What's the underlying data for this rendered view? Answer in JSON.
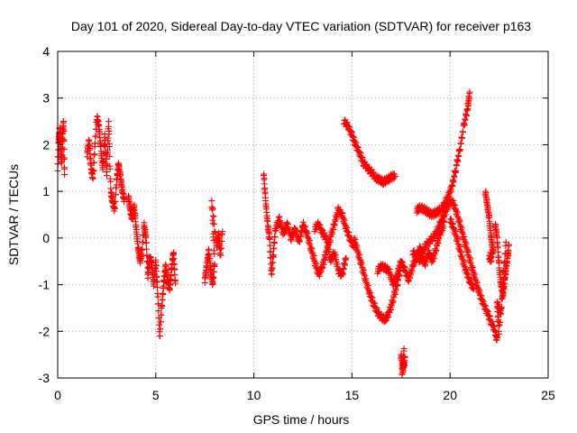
{
  "chart_data": {
    "type": "scatter",
    "title": "Day 101 of 2020, Sidereal Day-to-day VTEC variation (SDTVAR) for receiver p163",
    "xlabel": "GPS time / hours",
    "ylabel": "SDTVAR / TECUs",
    "xlim": [
      0,
      25
    ],
    "ylim": [
      -3,
      4
    ],
    "xticks": [
      "0",
      "5",
      "10",
      "15",
      "20",
      "25"
    ],
    "yticks": [
      "-3",
      "-2",
      "-1",
      "0",
      "1",
      "2",
      "3",
      "4"
    ],
    "grid": true,
    "marker": "plus",
    "color": "#ff0000",
    "series": [
      {
        "name": "SDTVAR",
        "segments": [
          [
            [
              0.0,
              1.5
            ],
            [
              0.05,
              2.1
            ],
            [
              0.1,
              2.3
            ],
            [
              0.15,
              1.9
            ],
            [
              0.2,
              1.6
            ],
            [
              0.25,
              2.2
            ],
            [
              0.3,
              2.5
            ],
            [
              0.35,
              1.3
            ]
          ],
          [
            [
              1.5,
              1.8
            ],
            [
              1.6,
              2.1
            ],
            [
              1.7,
              1.5
            ],
            [
              1.8,
              1.3
            ],
            [
              1.9,
              2.0
            ],
            [
              2.0,
              2.6
            ],
            [
              2.1,
              2.4
            ],
            [
              2.2,
              1.9
            ],
            [
              2.3,
              1.5
            ],
            [
              2.4,
              2.2
            ],
            [
              2.5,
              1.4
            ],
            [
              2.6,
              2.5
            ],
            [
              2.7,
              1.0
            ],
            [
              2.8,
              0.8
            ],
            [
              2.9,
              0.6
            ],
            [
              3.0,
              1.2
            ],
            [
              3.1,
              1.6
            ],
            [
              3.2,
              1.3
            ],
            [
              3.3,
              1.0
            ],
            [
              3.4,
              0.8
            ]
          ],
          [
            [
              3.6,
              0.9
            ],
            [
              3.7,
              0.6
            ],
            [
              3.8,
              0.4
            ],
            [
              3.9,
              0.7
            ],
            [
              4.0,
              0.2
            ],
            [
              4.1,
              -0.2
            ],
            [
              4.2,
              -0.5
            ],
            [
              4.3,
              -0.3
            ],
            [
              4.4,
              0.3
            ],
            [
              4.5,
              0.0
            ],
            [
              4.6,
              -0.8
            ],
            [
              4.7,
              -0.4
            ],
            [
              4.8,
              -0.6
            ],
            [
              4.9,
              -1.0
            ],
            [
              5.0,
              -0.5
            ],
            [
              5.1,
              -1.2
            ],
            [
              5.2,
              -2.1
            ],
            [
              5.3,
              -1.5
            ],
            [
              5.4,
              -1.0
            ],
            [
              5.5,
              -0.6
            ],
            [
              5.6,
              -0.9
            ],
            [
              5.7,
              -1.1
            ],
            [
              5.8,
              -0.7
            ],
            [
              5.9,
              -0.3
            ],
            [
              6.0,
              -1.0
            ]
          ],
          [
            [
              7.5,
              -0.9
            ],
            [
              7.6,
              -0.6
            ],
            [
              7.7,
              -0.3
            ],
            [
              7.8,
              -0.7
            ],
            [
              7.9,
              -1.0
            ],
            [
              8.0,
              -0.5
            ],
            [
              7.85,
              0.8
            ],
            [
              8.1,
              -0.2
            ],
            [
              8.2,
              0.1
            ],
            [
              8.3,
              -0.4
            ],
            [
              8.4,
              0.2
            ]
          ],
          [
            [
              10.5,
              1.4
            ],
            [
              10.6,
              0.8
            ],
            [
              10.7,
              0.3
            ],
            [
              10.8,
              0.0
            ],
            [
              10.9,
              -0.8
            ],
            [
              11.0,
              -0.3
            ],
            [
              11.1,
              0.2
            ],
            [
              11.3,
              0.4
            ],
            [
              11.5,
              0.1
            ],
            [
              11.7,
              0.3
            ],
            [
              11.9,
              0.0
            ],
            [
              12.1,
              0.2
            ],
            [
              12.3,
              -0.1
            ],
            [
              12.5,
              0.3
            ],
            [
              12.7,
              0.1
            ],
            [
              12.9,
              -0.2
            ],
            [
              13.1,
              -0.5
            ],
            [
              13.3,
              -0.8
            ],
            [
              13.5,
              -0.6
            ],
            [
              13.7,
              -0.3
            ],
            [
              13.9,
              0.0
            ],
            [
              14.1,
              0.3
            ],
            [
              14.3,
              0.6
            ],
            [
              14.5,
              0.5
            ],
            [
              14.7,
              0.2
            ],
            [
              14.9,
              0.0
            ],
            [
              15.1,
              -0.2
            ]
          ],
          [
            [
              13.1,
              0.2
            ],
            [
              13.3,
              0.3
            ],
            [
              13.5,
              0.1
            ],
            [
              13.7,
              0.0
            ],
            [
              13.9,
              -0.5
            ],
            [
              14.1,
              -0.3
            ],
            [
              14.3,
              -0.7
            ],
            [
              14.5,
              -0.8
            ],
            [
              14.7,
              -0.4
            ]
          ],
          [
            [
              14.6,
              2.5
            ],
            [
              14.8,
              2.4
            ],
            [
              15.0,
              2.2
            ],
            [
              15.2,
              2.0
            ],
            [
              15.4,
              1.8
            ],
            [
              15.6,
              1.6
            ],
            [
              15.8,
              1.5
            ],
            [
              16.0,
              1.4
            ],
            [
              16.2,
              1.3
            ],
            [
              16.4,
              1.25
            ],
            [
              16.6,
              1.2
            ],
            [
              16.8,
              1.25
            ],
            [
              17.0,
              1.3
            ],
            [
              17.2,
              1.35
            ]
          ],
          [
            [
              15.1,
              0.0
            ],
            [
              15.3,
              -0.3
            ],
            [
              15.5,
              -0.6
            ],
            [
              15.7,
              -0.9
            ],
            [
              15.9,
              -1.2
            ],
            [
              16.1,
              -1.4
            ],
            [
              16.3,
              -1.6
            ],
            [
              16.5,
              -1.7
            ],
            [
              16.7,
              -1.75
            ],
            [
              16.9,
              -1.6
            ],
            [
              17.1,
              -1.3
            ],
            [
              17.3,
              -1.0
            ],
            [
              17.5,
              -0.6
            ]
          ],
          [
            [
              16.3,
              -0.7
            ],
            [
              16.5,
              -0.6
            ],
            [
              16.7,
              -0.65
            ],
            [
              16.9,
              -0.7
            ],
            [
              17.1,
              -1.0
            ],
            [
              17.3,
              -0.8
            ],
            [
              17.5,
              -0.5
            ],
            [
              17.7,
              -0.7
            ],
            [
              17.9,
              -0.9
            ],
            [
              18.1,
              -0.6
            ],
            [
              18.3,
              -0.4
            ],
            [
              18.5,
              -0.2
            ],
            [
              18.7,
              -0.6
            ],
            [
              18.9,
              -0.3
            ],
            [
              19.1,
              -0.5
            ],
            [
              19.3,
              -0.2
            ],
            [
              19.5,
              0.1
            ],
            [
              19.7,
              0.3
            ]
          ],
          [
            [
              17.5,
              -2.5
            ],
            [
              17.6,
              -2.8
            ],
            [
              17.7,
              -2.6
            ],
            [
              17.55,
              -2.9
            ],
            [
              17.65,
              -2.4
            ]
          ],
          [
            [
              18.3,
              0.6
            ],
            [
              18.5,
              0.65
            ],
            [
              18.7,
              0.6
            ],
            [
              18.9,
              0.55
            ],
            [
              19.1,
              0.5
            ],
            [
              19.3,
              0.55
            ],
            [
              19.5,
              0.6
            ],
            [
              19.7,
              0.7
            ],
            [
              19.9,
              0.9
            ],
            [
              20.1,
              1.1
            ],
            [
              20.3,
              1.5
            ],
            [
              20.5,
              1.9
            ],
            [
              20.7,
              2.4
            ],
            [
              20.9,
              2.8
            ],
            [
              21.0,
              3.1
            ]
          ],
          [
            [
              18.1,
              -0.3
            ],
            [
              18.3,
              -0.4
            ],
            [
              18.5,
              -0.5
            ],
            [
              18.7,
              -0.2
            ],
            [
              18.9,
              -0.1
            ],
            [
              19.1,
              0.0
            ],
            [
              19.3,
              0.1
            ],
            [
              19.5,
              0.3
            ],
            [
              19.7,
              0.5
            ],
            [
              19.9,
              0.7
            ],
            [
              20.1,
              0.8
            ],
            [
              20.3,
              0.6
            ],
            [
              20.5,
              0.3
            ],
            [
              20.7,
              0.0
            ],
            [
              20.9,
              -0.3
            ],
            [
              21.1,
              -0.6
            ],
            [
              21.3,
              -0.9
            ],
            [
              21.5,
              -1.2
            ],
            [
              21.7,
              -1.4
            ],
            [
              21.9,
              -1.6
            ],
            [
              22.1,
              -1.8
            ],
            [
              22.3,
              -2.0
            ],
            [
              22.4,
              -2.2
            ]
          ],
          [
            [
              20.0,
              0.4
            ],
            [
              20.2,
              0.2
            ],
            [
              20.4,
              -0.1
            ],
            [
              20.6,
              -0.4
            ],
            [
              20.8,
              -0.7
            ],
            [
              21.0,
              -0.9
            ],
            [
              21.2,
              -1.1
            ]
          ],
          [
            [
              21.8,
              1.0
            ],
            [
              21.9,
              0.7
            ],
            [
              22.0,
              0.4
            ],
            [
              22.1,
              0.0
            ],
            [
              22.2,
              -0.3
            ],
            [
              22.0,
              -0.4
            ],
            [
              22.1,
              -0.5
            ]
          ],
          [
            [
              22.3,
              0.3
            ],
            [
              22.4,
              0.0
            ],
            [
              22.5,
              -0.6
            ],
            [
              22.6,
              -1.0
            ],
            [
              22.7,
              -1.2
            ],
            [
              22.8,
              -0.8
            ],
            [
              22.9,
              -0.5
            ],
            [
              23.0,
              -0.2
            ],
            [
              22.6,
              -1.6
            ],
            [
              22.4,
              -1.4
            ],
            [
              22.5,
              -2.0
            ],
            [
              22.7,
              -0.9
            ],
            [
              22.85,
              -0.15
            ]
          ]
        ]
      }
    ]
  }
}
